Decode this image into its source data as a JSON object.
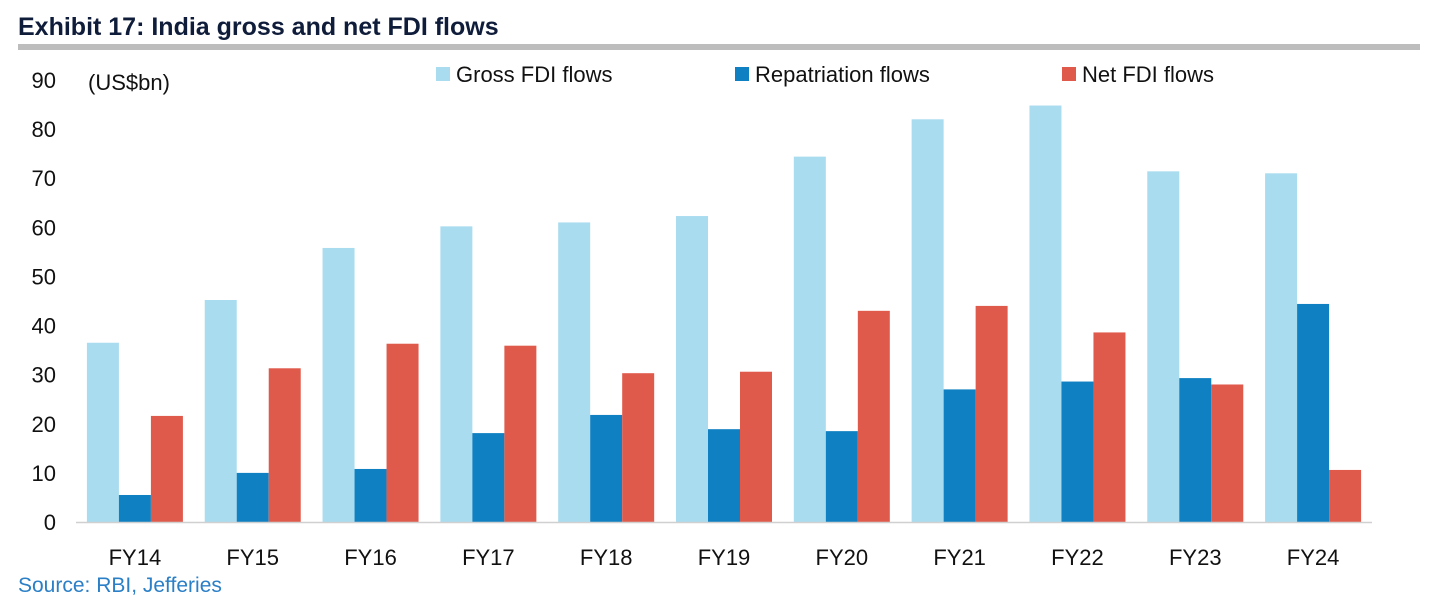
{
  "chart_data": {
    "type": "bar",
    "title": "Exhibit 17: India gross and net FDI flows",
    "unit_label": "(US$bn)",
    "source": "Source: RBI, Jefferies",
    "categories": [
      "FY14",
      "FY15",
      "FY16",
      "FY17",
      "FY18",
      "FY19",
      "FY20",
      "FY21",
      "FY22",
      "FY23",
      "FY24"
    ],
    "series": [
      {
        "name": "Gross FDI flows",
        "color": "#a9dcef",
        "values": [
          36.5,
          45.2,
          55.8,
          60.2,
          61.0,
          62.3,
          74.4,
          82.0,
          84.8,
          71.4,
          71.0
        ]
      },
      {
        "name": "Repatriation flows",
        "color": "#0f80c1",
        "values": [
          5.5,
          10.0,
          10.8,
          18.1,
          21.8,
          18.9,
          18.5,
          27.0,
          28.6,
          29.3,
          44.4
        ]
      },
      {
        "name": "Net FDI flows",
        "color": "#e05a4b",
        "values": [
          21.6,
          31.3,
          36.3,
          35.9,
          30.3,
          30.6,
          43.0,
          44.0,
          38.6,
          28.0,
          10.6
        ]
      }
    ],
    "ylim": [
      0,
      90
    ],
    "yticks": [
      0,
      10,
      20,
      30,
      40,
      50,
      60,
      70,
      80,
      90
    ],
    "grid": false,
    "legend_position": "top"
  }
}
